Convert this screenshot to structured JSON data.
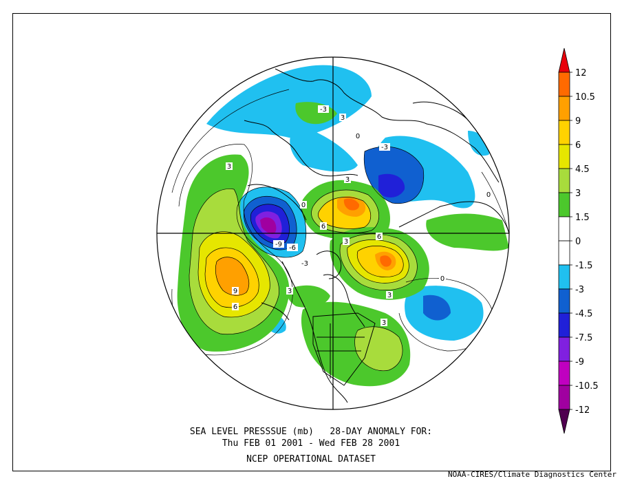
{
  "title": {
    "line1": "SEA LEVEL PRESSSUE (mb)   28-DAY ANOMALY FOR:",
    "line2": "Thu FEB 01 2001 - Wed FEB 28 2001",
    "line3": "NCEP OPERATIONAL DATASET"
  },
  "credit": "NOAA-CIRES/Climate Diagnostics Center",
  "colorbar": {
    "labels": [
      "12",
      "10.5",
      "9",
      "6",
      "4.5",
      "3",
      "1.5",
      "0",
      "-1.5",
      "-3",
      "-4.5",
      "-7.5",
      "-9",
      "-10.5",
      "-12"
    ],
    "colors": [
      "#e8000a",
      "#ff6a00",
      "#ffa000",
      "#ffd200",
      "#e6e600",
      "#a8dc3c",
      "#4cc82c",
      "#ffffff",
      "#ffffff",
      "#20c0f0",
      "#1060d0",
      "#2020d8",
      "#8020e0",
      "#c000c0",
      "#a000a0",
      "#500050"
    ]
  },
  "contour_labels": [
    "3",
    "-3",
    "3",
    "0",
    "6",
    "-9",
    "-6",
    "6",
    "3",
    "9",
    "6",
    "3",
    "3",
    "0",
    "-3",
    "3",
    "0",
    "0",
    "-3",
    "3"
  ]
}
